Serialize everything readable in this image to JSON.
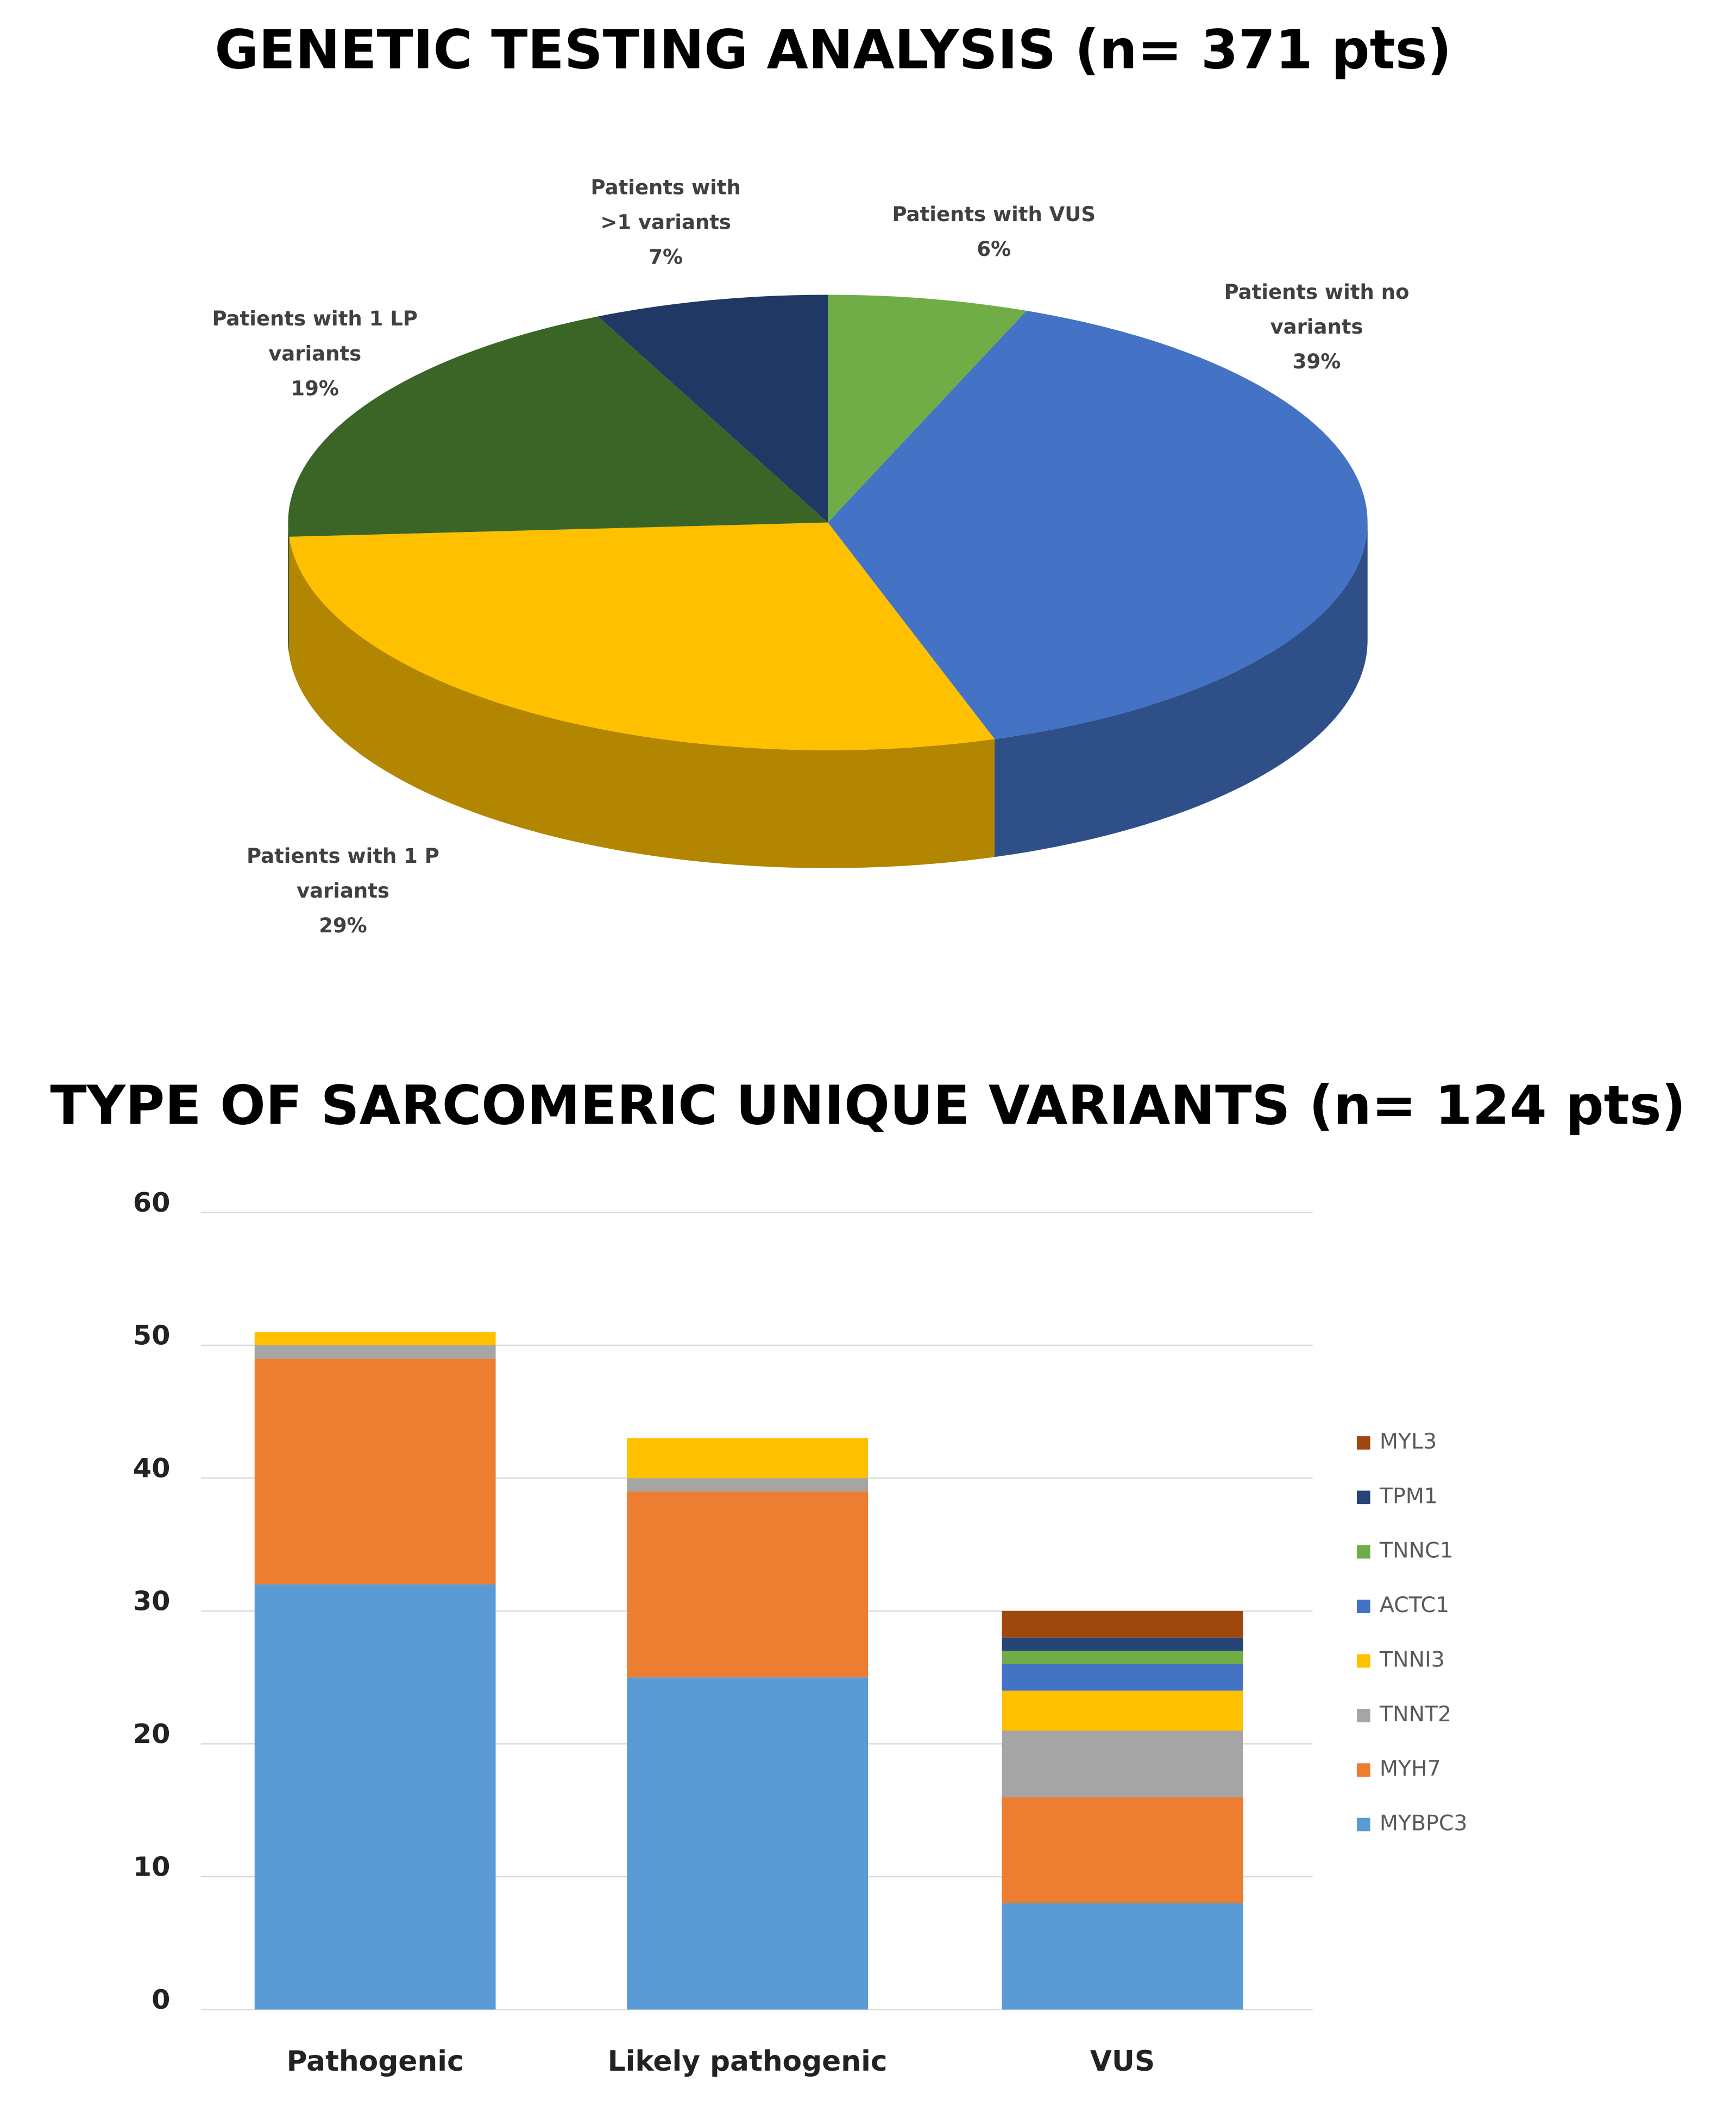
{
  "chart_data": [
    {
      "type": "pie",
      "title": "GENETIC TESTING ANALYSIS (n= 371 pts)",
      "categories": [
        "Patients with VUS",
        "Patients with no variants",
        "Patients with 1 P variants",
        "Patients with 1 LP variants",
        "Patients with >1 variants"
      ],
      "values": [
        6,
        39,
        29,
        19,
        7
      ],
      "value_labels": [
        "6%",
        "39%",
        "29%",
        "19%",
        "7%"
      ],
      "colors": [
        "#70ad47",
        "#4472c4",
        "#ffc000",
        "#3b6527",
        "#203864"
      ]
    },
    {
      "type": "bar",
      "stacked": true,
      "title": "TYPE OF SARCOMERIC UNIQUE VARIANTS (n= 124 pts)",
      "categories": [
        "Pathogenic",
        "Likely pathogenic",
        "VUS"
      ],
      "series": [
        {
          "name": "MYBPC3",
          "color": "#5b9bd5",
          "values": [
            32,
            25,
            8
          ]
        },
        {
          "name": "MYH7",
          "color": "#ed7d31",
          "values": [
            17,
            14,
            8
          ]
        },
        {
          "name": "TNNT2",
          "color": "#a5a5a5",
          "values": [
            1,
            1,
            5
          ]
        },
        {
          "name": "TNNI3",
          "color": "#ffc000",
          "values": [
            1,
            3,
            3
          ]
        },
        {
          "name": "ACTC1",
          "color": "#4472c4",
          "values": [
            0,
            0,
            2
          ]
        },
        {
          "name": "TNNC1",
          "color": "#70ad47",
          "values": [
            0,
            0,
            1
          ]
        },
        {
          "name": "TPM1",
          "color": "#264478",
          "values": [
            0,
            0,
            1
          ]
        },
        {
          "name": "MYL3",
          "color": "#9e480e",
          "values": [
            0,
            0,
            2
          ]
        }
      ],
      "ylim": [
        0,
        60
      ],
      "yticks": [
        0,
        10,
        20,
        30,
        40,
        50,
        60
      ],
      "grid": true,
      "legend": "right"
    }
  ]
}
